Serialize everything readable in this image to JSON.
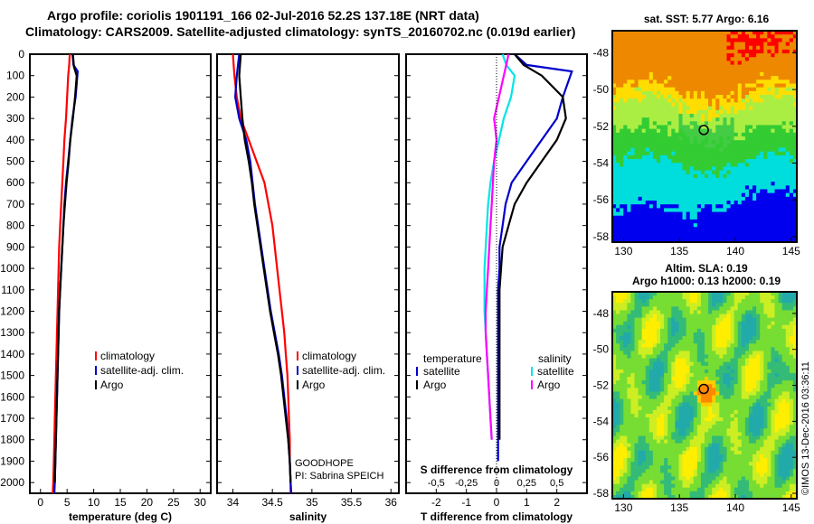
{
  "header": {
    "line1": "Argo profile: coriolis 1901191_166 02-Jul-2016 52.2S 137.18E (NRT data)",
    "line2": "Climatology: CARS2009. Satellite-adjusted climatology: synTS_20160702.nc (0.019d earlier)"
  },
  "map1": {
    "title": "sat. SST: 5.77 Argo: 6.16"
  },
  "map2": {
    "title1": "Altim. SLA: 0.19",
    "title2": "Argo h1000: 0.13 h2000: 0.19"
  },
  "side_label": "©IMOS 13-Dec-2016 03:36:11",
  "colors": {
    "climatology": "#ff0000",
    "satellite": "#0000cc",
    "argo": "#000000",
    "sat_salinity": "#00e5e5",
    "argo_salinity": "#ff00ff"
  },
  "chart_data": [
    {
      "type": "line",
      "xlabel": "temperature (deg C)",
      "xlim": [
        -2,
        32
      ],
      "xticks": [
        "0",
        "5",
        "10",
        "15",
        "20",
        "25",
        "30"
      ],
      "ylim": [
        2050,
        0
      ],
      "yticks": [
        "0",
        "100",
        "200",
        "300",
        "400",
        "500",
        "600",
        "700",
        "800",
        "900",
        "1000",
        "1100",
        "1200",
        "1300",
        "1400",
        "1500",
        "1600",
        "1700",
        "1800",
        "1900",
        "2000"
      ],
      "legend": [
        "climatology",
        "satellite-adj. clim.",
        "Argo"
      ],
      "series": [
        {
          "name": "climatology",
          "color": "#ff0000",
          "x": [
            5.5,
            5.4,
            5.2,
            5.0,
            4.8,
            4.5,
            4.3,
            4.1,
            3.9,
            3.7,
            3.5,
            3.4,
            3.3,
            3.2,
            3.1,
            3.0,
            2.9,
            2.8,
            2.7,
            2.6,
            2.5,
            2.4,
            2.3
          ],
          "y": [
            0,
            50,
            100,
            200,
            300,
            400,
            500,
            600,
            700,
            800,
            900,
            1000,
            1100,
            1200,
            1300,
            1400,
            1500,
            1600,
            1700,
            1800,
            1900,
            2000,
            2050
          ]
        },
        {
          "name": "satellite-adj. clim.",
          "color": "#0000cc",
          "x": [
            6.0,
            6.2,
            7.0,
            6.6,
            6.0,
            5.6,
            5.2,
            4.8,
            4.5,
            4.3,
            4.1,
            3.9,
            3.7,
            3.5,
            3.4,
            3.3,
            3.2,
            3.1,
            3.0,
            2.9,
            2.8,
            2.7,
            2.6
          ],
          "y": [
            0,
            50,
            80,
            200,
            300,
            400,
            500,
            600,
            700,
            800,
            900,
            1000,
            1100,
            1200,
            1300,
            1400,
            1500,
            1600,
            1700,
            1800,
            1900,
            2000,
            2050
          ]
        },
        {
          "name": "Argo",
          "color": "#000000",
          "x": [
            6.1,
            6.3,
            6.8,
            6.5,
            6.1,
            5.6,
            5.3,
            4.9,
            4.6,
            4.3,
            4.1,
            3.9,
            3.7,
            3.5,
            3.4,
            3.3,
            3.2,
            3.1,
            3.0,
            2.9,
            2.8,
            2.7
          ],
          "y": [
            0,
            60,
            100,
            200,
            300,
            400,
            500,
            600,
            700,
            800,
            900,
            1000,
            1100,
            1200,
            1300,
            1400,
            1500,
            1600,
            1700,
            1800,
            1900,
            2000
          ]
        }
      ]
    },
    {
      "type": "line",
      "xlabel": "salinity",
      "xlim": [
        33.8,
        36.1
      ],
      "xticks": [
        "34",
        "34.5",
        "35",
        "35.5",
        "36"
      ],
      "ylim": [
        2050,
        0
      ],
      "legend": [
        "climatology",
        "satellite-adj. clim.",
        "Argo"
      ],
      "annotations": [
        "GOODHOPE",
        "PI: Sabrina SPEICH"
      ],
      "series": [
        {
          "name": "climatology",
          "color": "#ff0000",
          "x": [
            34.0,
            34.02,
            34.05,
            34.1,
            34.2,
            34.3,
            34.4,
            34.45,
            34.5,
            34.53,
            34.56,
            34.59,
            34.62,
            34.65,
            34.67,
            34.69,
            34.7,
            34.71,
            34.72,
            34.72,
            34.73,
            34.73
          ],
          "y": [
            0,
            100,
            200,
            300,
            400,
            500,
            600,
            700,
            800,
            900,
            1000,
            1100,
            1200,
            1300,
            1400,
            1500,
            1600,
            1700,
            1800,
            1900,
            2000,
            2050
          ]
        },
        {
          "name": "satellite-adj. clim.",
          "color": "#0000cc",
          "x": [
            34.08,
            34.05,
            34.03,
            34.08,
            34.17,
            34.22,
            34.25,
            34.28,
            34.32,
            34.36,
            34.4,
            34.44,
            34.48,
            34.53,
            34.58,
            34.62,
            34.65,
            34.68,
            34.7,
            34.72,
            34.73,
            34.74
          ],
          "y": [
            0,
            100,
            200,
            300,
            400,
            500,
            600,
            700,
            800,
            900,
            1000,
            1100,
            1200,
            1300,
            1400,
            1500,
            1600,
            1700,
            1800,
            1900,
            2000,
            2050
          ]
        },
        {
          "name": "Argo",
          "color": "#000000",
          "x": [
            34.1,
            34.08,
            34.1,
            34.12,
            34.15,
            34.2,
            34.24,
            34.27,
            34.31,
            34.35,
            34.39,
            34.43,
            34.47,
            34.52,
            34.57,
            34.61,
            34.64,
            34.67,
            34.7,
            34.72,
            34.73
          ],
          "y": [
            0,
            100,
            200,
            300,
            400,
            500,
            600,
            700,
            800,
            900,
            1000,
            1100,
            1200,
            1300,
            1400,
            1500,
            1600,
            1700,
            1800,
            1900,
            2000
          ]
        }
      ]
    },
    {
      "type": "line",
      "xlabel": "T difference from climatology",
      "xlim": [
        -3,
        3
      ],
      "xticks": [
        "-2",
        "-1",
        "0",
        "1",
        "2"
      ],
      "title_bottom": "S difference from climatology",
      "sticks": [
        "-0.5",
        "-0.25",
        "0",
        "0.25",
        "0.5"
      ],
      "slim": [
        -0.75,
        0.75
      ],
      "ylim": [
        2050,
        0
      ],
      "legend_left_title": "temperature",
      "legend_left": [
        "satellite",
        "Argo"
      ],
      "legend_right_title": "salinity",
      "legend_right": [
        "satellite",
        "Argo"
      ],
      "series": [
        {
          "name": "satellite",
          "color": "#0000cc",
          "axis": "T",
          "x": [
            0.6,
            1.0,
            2.5,
            2.2,
            2.0,
            1.5,
            1.0,
            0.5,
            0.3,
            0.2,
            0.1,
            0.1,
            0.05,
            0.05,
            0.05,
            0.05,
            0.05,
            0.05,
            0.05,
            0.05,
            0.05
          ],
          "y": [
            0,
            50,
            80,
            200,
            300,
            400,
            500,
            600,
            700,
            800,
            900,
            1000,
            1100,
            1200,
            1300,
            1400,
            1500,
            1600,
            1700,
            1800,
            1900
          ]
        },
        {
          "name": "Argo",
          "color": "#000000",
          "axis": "T",
          "x": [
            0.6,
            0.9,
            1.5,
            2.2,
            2.3,
            2.0,
            1.5,
            1.0,
            0.6,
            0.4,
            0.2,
            0.15,
            0.1,
            0.1,
            0.1,
            0.1,
            0.1,
            0.1,
            0.1,
            0.1
          ],
          "y": [
            0,
            50,
            100,
            200,
            300,
            400,
            500,
            600,
            700,
            800,
            900,
            1000,
            1100,
            1200,
            1300,
            1400,
            1500,
            1600,
            1700,
            1800
          ]
        },
        {
          "name": "satellite",
          "color": "#00e5e5",
          "axis": "S",
          "x": [
            0.05,
            0.08,
            0.15,
            0.12,
            0.06,
            0.02,
            -0.02,
            -0.05,
            -0.07,
            -0.08,
            -0.09,
            -0.1,
            -0.1,
            -0.1,
            -0.09,
            -0.08,
            -0.07,
            -0.06,
            -0.05,
            -0.04
          ],
          "y": [
            0,
            50,
            100,
            200,
            300,
            400,
            500,
            600,
            700,
            800,
            900,
            1000,
            1100,
            1200,
            1300,
            1400,
            1500,
            1600,
            1700,
            1800
          ]
        },
        {
          "name": "Argo",
          "color": "#ff00ff",
          "axis": "S",
          "x": [
            0.1,
            0.08,
            0.02,
            -0.02,
            0.0,
            -0.02,
            -0.03,
            -0.04,
            -0.05,
            -0.06,
            -0.07,
            -0.08,
            -0.09,
            -0.09,
            -0.08,
            -0.07,
            -0.06,
            -0.05,
            -0.04
          ],
          "y": [
            0,
            50,
            200,
            300,
            400,
            500,
            600,
            700,
            800,
            900,
            1000,
            1100,
            1200,
            1300,
            1400,
            1500,
            1600,
            1700,
            1800
          ]
        }
      ]
    },
    {
      "type": "heatmap",
      "title": "sat. SST: 5.77 Argo: 6.16",
      "xticks": [
        "130",
        "135",
        "140",
        "145"
      ],
      "yticks": [
        "-48",
        "-50",
        "-52",
        "-54",
        "-56",
        "-58"
      ],
      "xlim": [
        129,
        145.5
      ],
      "ylim": [
        -58.3,
        -46.8
      ],
      "marker": {
        "lon": 137.18,
        "lat": -52.2
      }
    },
    {
      "type": "heatmap",
      "title": "Altim. SLA: 0.19 / Argo h1000: 0.13 h2000: 0.19",
      "xticks": [
        "130",
        "135",
        "140",
        "145"
      ],
      "yticks": [
        "-48",
        "-50",
        "-52",
        "-54",
        "-56",
        "-58"
      ],
      "xlim": [
        129,
        145.5
      ],
      "ylim": [
        -58.3,
        -46.8
      ],
      "marker": {
        "lon": 137.18,
        "lat": -52.2
      }
    }
  ]
}
